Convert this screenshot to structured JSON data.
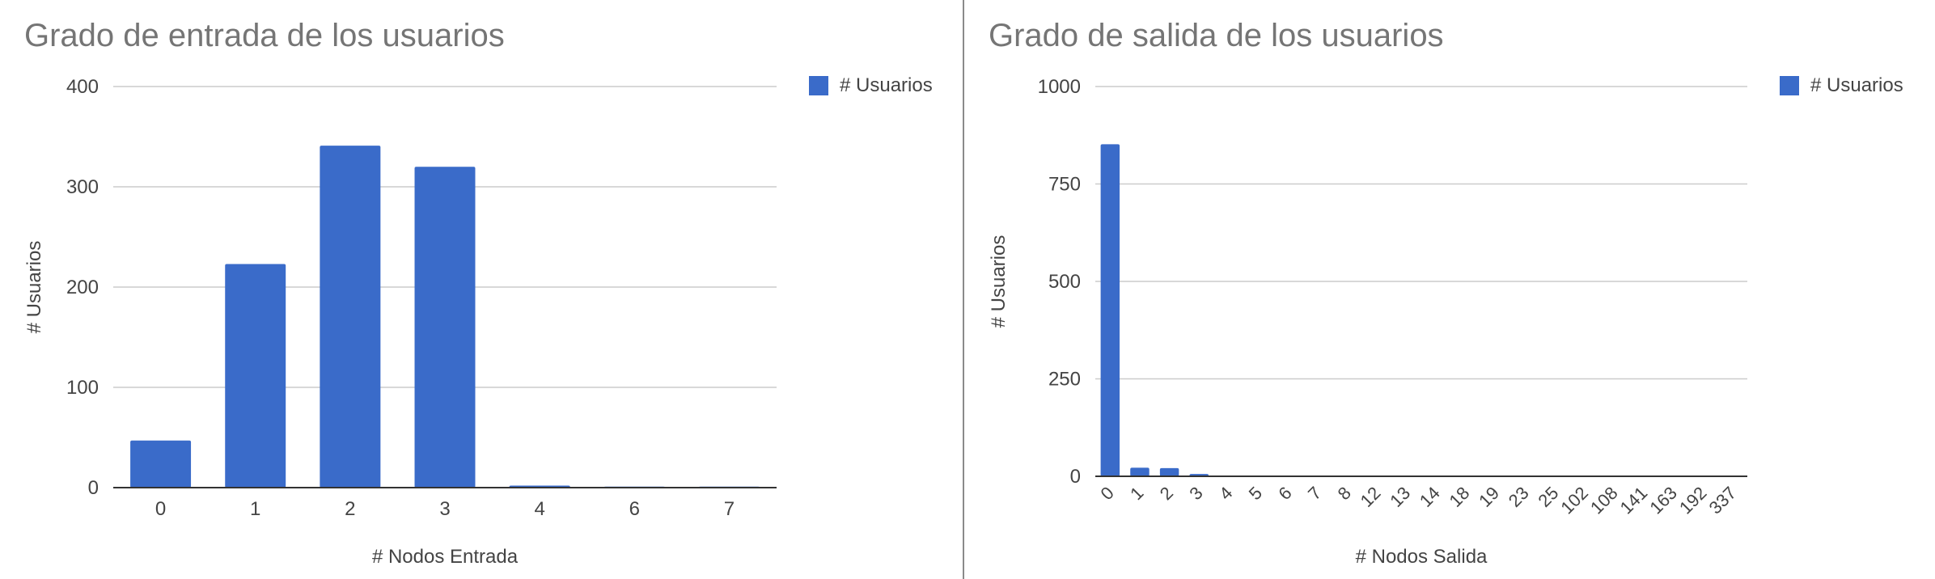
{
  "colors": {
    "bar": "#3a6bc9",
    "grid": "#cccccc",
    "axis": "#333333",
    "text": "#444444",
    "title": "#757575"
  },
  "chart_data": [
    {
      "type": "bar",
      "title": "Grado de entrada de los usuarios",
      "xlabel": "# Nodos Entrada",
      "ylabel": "# Usuarios",
      "categories": [
        "0",
        "1",
        "2",
        "3",
        "4",
        "6",
        "7"
      ],
      "series": [
        {
          "name": "# Usuarios",
          "values": [
            47,
            223,
            341,
            320,
            2,
            1,
            1
          ]
        }
      ],
      "ylim": [
        0,
        400
      ],
      "yticks": [
        0,
        100,
        200,
        300,
        400
      ],
      "grid": true,
      "legend": "top-right"
    },
    {
      "type": "bar",
      "title": "Grado de salida de los usuarios",
      "xlabel": "# Nodos Salida",
      "ylabel": "# Usuarios",
      "categories": [
        "0",
        "1",
        "2",
        "3",
        "4",
        "5",
        "6",
        "7",
        "8",
        "12",
        "13",
        "14",
        "18",
        "19",
        "23",
        "25",
        "102",
        "108",
        "141",
        "163",
        "192",
        "337"
      ],
      "series": [
        {
          "name": "# Usuarios",
          "values": [
            852,
            22,
            21,
            6,
            2,
            1,
            1,
            1,
            1,
            1,
            1,
            1,
            1,
            1,
            1,
            1,
            1,
            1,
            1,
            1,
            1,
            1
          ]
        }
      ],
      "ylim": [
        0,
        1000
      ],
      "yticks": [
        0,
        250,
        500,
        750,
        1000
      ],
      "grid": true,
      "legend": "top-right"
    }
  ]
}
